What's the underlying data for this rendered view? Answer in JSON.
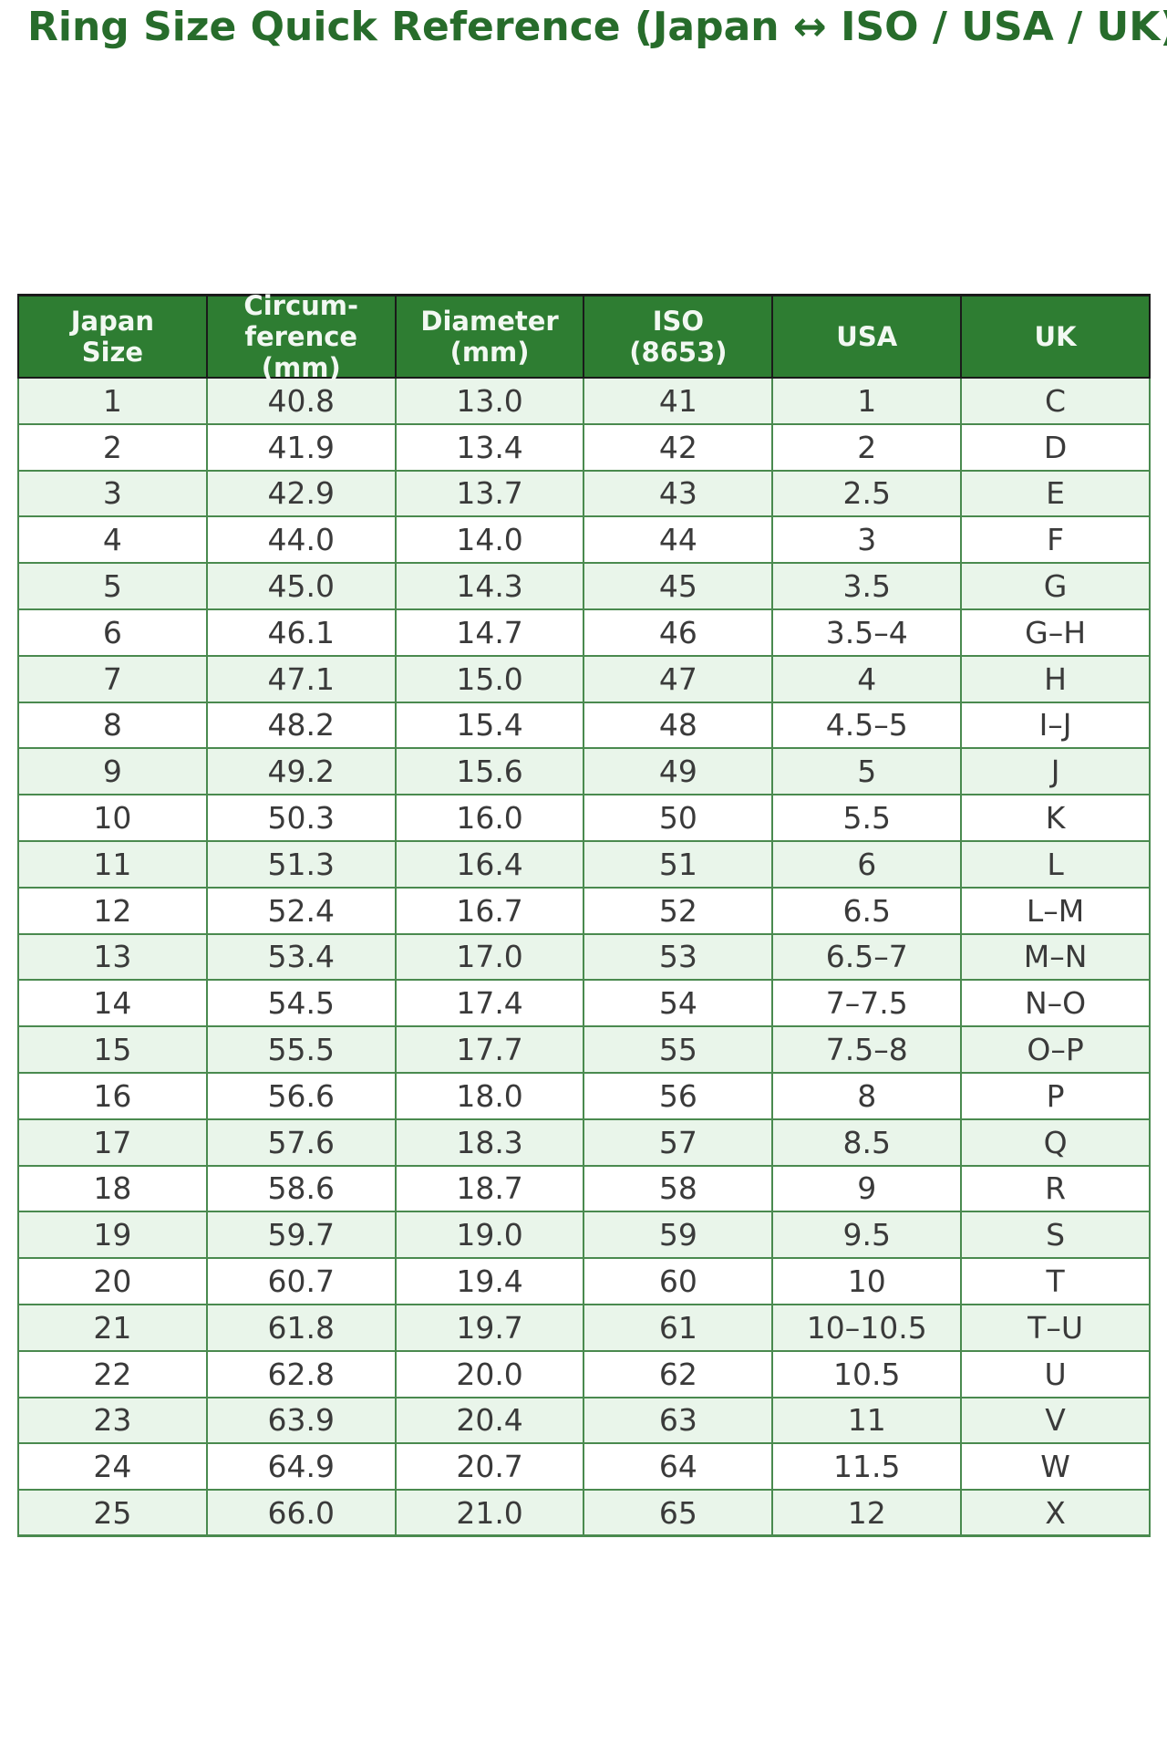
{
  "colors": {
    "page_bg": "#ffffff",
    "title_text": "#276c2b",
    "header_bg": "#2e7d32",
    "header_text": "#f2f8f2",
    "header_border": "#1a1a1a",
    "grid_green": "#4a8a4f",
    "row_stripe": "#e9f5ea",
    "row_white": "#ffffff",
    "cell_text": "#3a3a3a"
  },
  "chart_data": {
    "type": "table",
    "title": "Ring Size Quick Reference (Japan ↔ ISO / USA / UK)",
    "columns": [
      "Japan\nSize",
      "Circum-\nference\n(mm)",
      "Diameter\n(mm)",
      "ISO\n(8653)",
      "USA",
      "UK"
    ],
    "rows": [
      [
        "1",
        "40.8",
        "13.0",
        "41",
        "1",
        "C"
      ],
      [
        "2",
        "41.9",
        "13.4",
        "42",
        "2",
        "D"
      ],
      [
        "3",
        "42.9",
        "13.7",
        "43",
        "2.5",
        "E"
      ],
      [
        "4",
        "44.0",
        "14.0",
        "44",
        "3",
        "F"
      ],
      [
        "5",
        "45.0",
        "14.3",
        "45",
        "3.5",
        "G"
      ],
      [
        "6",
        "46.1",
        "14.7",
        "46",
        "3.5–4",
        "G–H"
      ],
      [
        "7",
        "47.1",
        "15.0",
        "47",
        "4",
        "H"
      ],
      [
        "8",
        "48.2",
        "15.4",
        "48",
        "4.5–5",
        "I–J"
      ],
      [
        "9",
        "49.2",
        "15.6",
        "49",
        "5",
        "J"
      ],
      [
        "10",
        "50.3",
        "16.0",
        "50",
        "5.5",
        "K"
      ],
      [
        "11",
        "51.3",
        "16.4",
        "51",
        "6",
        "L"
      ],
      [
        "12",
        "52.4",
        "16.7",
        "52",
        "6.5",
        "L–M"
      ],
      [
        "13",
        "53.4",
        "17.0",
        "53",
        "6.5–7",
        "M–N"
      ],
      [
        "14",
        "54.5",
        "17.4",
        "54",
        "7–7.5",
        "N–O"
      ],
      [
        "15",
        "55.5",
        "17.7",
        "55",
        "7.5–8",
        "O–P"
      ],
      [
        "16",
        "56.6",
        "18.0",
        "56",
        "8",
        "P"
      ],
      [
        "17",
        "57.6",
        "18.3",
        "57",
        "8.5",
        "Q"
      ],
      [
        "18",
        "58.6",
        "18.7",
        "58",
        "9",
        "R"
      ],
      [
        "19",
        "59.7",
        "19.0",
        "59",
        "9.5",
        "S"
      ],
      [
        "20",
        "60.7",
        "19.4",
        "60",
        "10",
        "T"
      ],
      [
        "21",
        "61.8",
        "19.7",
        "61",
        "10–10.5",
        "T–U"
      ],
      [
        "22",
        "62.8",
        "20.0",
        "62",
        "10.5",
        "U"
      ],
      [
        "23",
        "63.9",
        "20.4",
        "63",
        "11",
        "V"
      ],
      [
        "24",
        "64.9",
        "20.7",
        "64",
        "11.5",
        "W"
      ],
      [
        "25",
        "66.0",
        "21.0",
        "65",
        "12",
        "X"
      ]
    ]
  }
}
